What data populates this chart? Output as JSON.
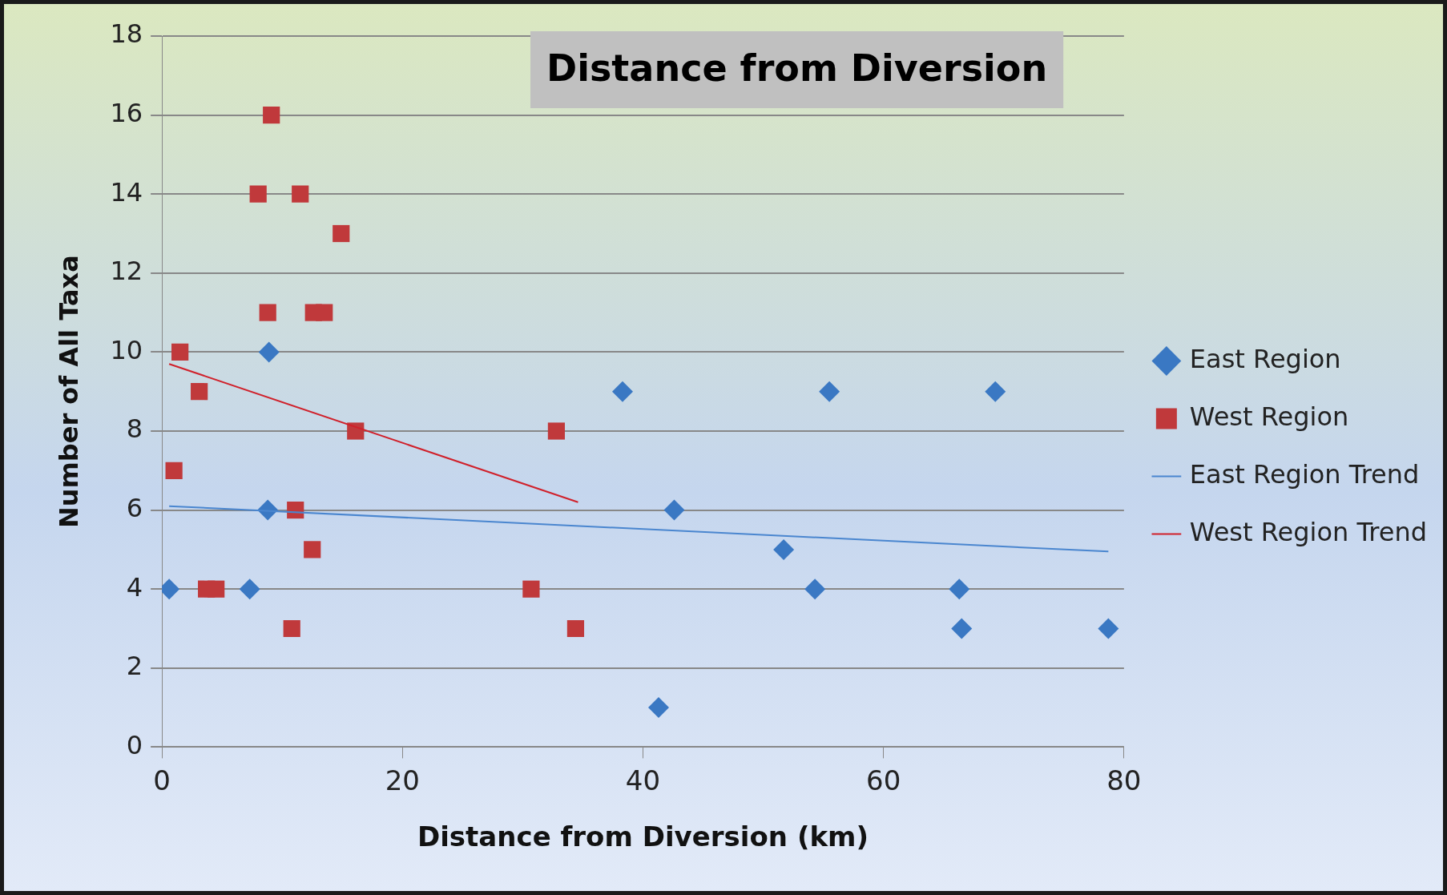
{
  "chart_data": {
    "type": "scatter",
    "title": "Distance from Diversion",
    "xlabel": "Distance from Diversion (km)",
    "ylabel": "Number of All Taxa",
    "xlim": [
      0,
      80
    ],
    "xticks": [
      0,
      20,
      40,
      60,
      80
    ],
    "ylim": [
      0,
      18
    ],
    "yticks": [
      0,
      2,
      4,
      6,
      8,
      10,
      12,
      14,
      16,
      18
    ],
    "grid": "y",
    "legend": "right",
    "series": [
      {
        "name": "East Region",
        "color": "#3a78c3",
        "marker": "diamond",
        "x": [
          0.6,
          8.9,
          8.8,
          7.3,
          38.3,
          42.6,
          41.3,
          51.7,
          54.3,
          55.5,
          66.3,
          66.5,
          69.3,
          78.7
        ],
        "values": [
          4,
          10,
          6,
          4,
          9,
          6,
          1,
          5,
          4,
          9,
          4,
          3,
          9,
          3
        ]
      },
      {
        "name": "West Region",
        "color": "#c0393b",
        "marker": "square",
        "x": [
          9.1,
          8.0,
          11.5,
          14.9,
          8.8,
          12.6,
          13.5,
          1.5,
          3.1,
          1.0,
          16.1,
          32.8,
          11.1,
          12.5,
          3.7,
          4.5,
          30.7,
          10.8,
          34.4
        ],
        "values": [
          16,
          14,
          14,
          13,
          11,
          11,
          11,
          10,
          9,
          7,
          8,
          8,
          6,
          5,
          4,
          4,
          4,
          3,
          3
        ]
      },
      {
        "name": "East Region Trend",
        "type": "line",
        "color": "#4a86cf",
        "marker": "none",
        "x": [
          0.6,
          78.7
        ],
        "values": [
          6.1,
          4.95
        ]
      },
      {
        "name": "West Region Trend",
        "type": "line",
        "color": "#d0202a",
        "marker": "none",
        "x": [
          0.6,
          34.6
        ],
        "values": [
          9.7,
          6.2
        ]
      }
    ]
  }
}
